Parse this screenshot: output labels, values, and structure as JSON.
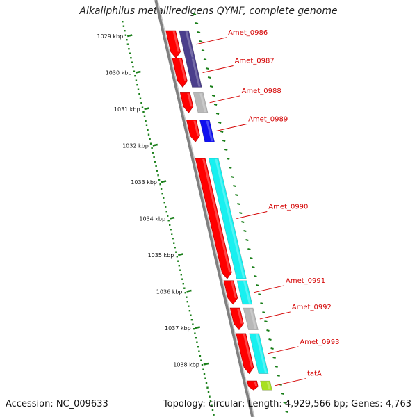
{
  "header": {
    "title": "Alkaliphilus metalliredigens QYMF, complete genome"
  },
  "footer": {
    "accession": "Accession: NC_009633",
    "summary": "Topology: circular; Length: 4,929,566 bp; Genes: 4,763"
  },
  "colors": {
    "gene_arrow": "#ff0000",
    "scale_dots": "#1a7f1a",
    "backbone": "#808080",
    "label": "#d40000",
    "purple": "#4b3f8c",
    "gray": "#b8b8b8",
    "blue": "#1010ee",
    "cyan": "#18f0f0",
    "lime": "#a8e020"
  },
  "scale": {
    "ticks": [
      "1029 kbp",
      "1030 kbp",
      "1031 kbp",
      "1032 kbp",
      "1033 kbp",
      "1034 kbp",
      "1035 kbp",
      "1036 kbp",
      "1037 kbp",
      "1038 kbp"
    ]
  },
  "genes": [
    {
      "label": "Amet_0986",
      "product_color": "purple",
      "start_kbp": 1028.85,
      "end_kbp": 1029.6
    },
    {
      "label": "Amet_0987",
      "product_color": "purple",
      "start_kbp": 1029.6,
      "end_kbp": 1030.4
    },
    {
      "label": "Amet_0988",
      "product_color": "gray",
      "start_kbp": 1030.55,
      "end_kbp": 1031.1
    },
    {
      "label": "Amet_0989",
      "product_color": "blue",
      "start_kbp": 1031.3,
      "end_kbp": 1031.9
    },
    {
      "label": "Amet_0990",
      "product_color": "cyan",
      "start_kbp": 1032.35,
      "end_kbp": 1035.65
    },
    {
      "label": "Amet_0991",
      "product_color": "cyan",
      "start_kbp": 1035.7,
      "end_kbp": 1036.35
    },
    {
      "label": "Amet_0992",
      "product_color": "gray",
      "start_kbp": 1036.45,
      "end_kbp": 1037.05
    },
    {
      "label": "Amet_0993",
      "product_color": "cyan",
      "start_kbp": 1037.15,
      "end_kbp": 1038.25
    },
    {
      "label": "tatA",
      "product_color": "lime",
      "start_kbp": 1038.45,
      "end_kbp": 1038.7
    }
  ]
}
